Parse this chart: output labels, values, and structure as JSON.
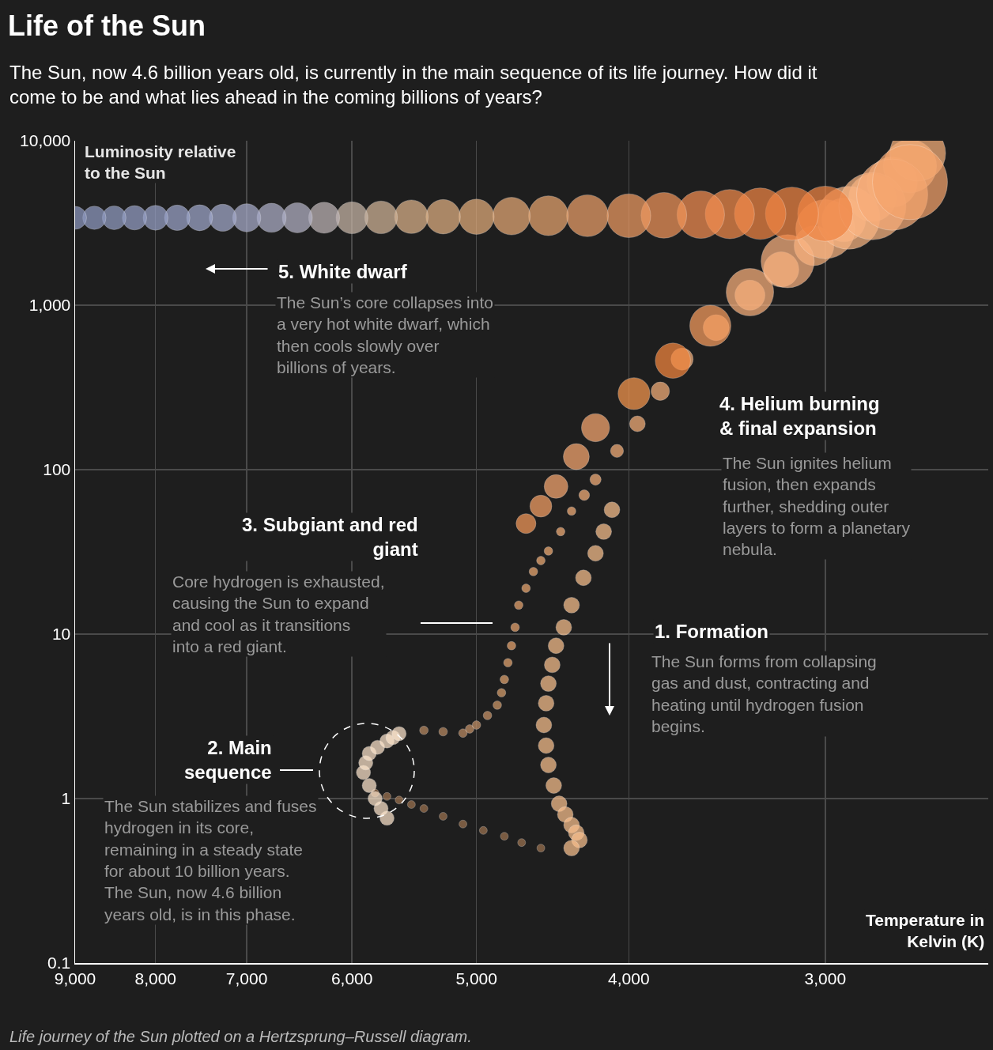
{
  "chart_data": {
    "type": "bubble",
    "title": "Life of the Sun",
    "subtitle": "The Sun, now 4.6 billion years old, is currently in the main sequence of its life journey. How did it come to be and what lies ahead in the coming billions of years?",
    "xlabel": "Temperature in Kelvin (K)",
    "ylabel": "Luminosity relative to the Sun",
    "annotations": [
      "5. White dwarf",
      "The Sun’s core collapses into a very hot white dwarf, which then cools slowly over billions of years.",
      "4. Helium burning & final expansion",
      "The Sun ignites helium fusion, then expands further, shedding outer layers to form a planetary nebula.",
      "3. Subgiant and red giant",
      "Core hydrogen is exhausted, causing the Sun to expand and cool as it transitions into a red giant.",
      "1. Formation",
      "The Sun forms from collapsing gas and dust, contracting and heating until hydrogen fusion begins.",
      "2. Main sequence",
      "The Sun stabilizes and fuses hydrogen in its core, remaining in a steady state for about 10 billion years. The Sun, now 4.6 billion years old, is in this phase.",
      "Life journey of the Sun plotted on a Hertzsprung–Russell diagram."
    ],
    "x": [
      4100,
      4150,
      4200,
      4275,
      4350,
      4400,
      4450,
      4475,
      4500,
      4515,
      4530,
      4515,
      4500,
      4465,
      4430,
      4390,
      4350,
      4320,
      4300,
      4350,
      4550,
      4680,
      4800,
      4950,
      5100,
      5250,
      5400,
      5500,
      5600,
      5700,
      5800,
      5700,
      5750,
      5800,
      5850,
      5900,
      5880,
      5850,
      5780,
      5700,
      5650,
      5600,
      5400,
      5250,
      5100,
      5050,
      5000,
      4920,
      4850,
      4820,
      4800,
      4775,
      4750,
      4725,
      4700,
      4650,
      4600,
      4550,
      4500,
      4420,
      4350,
      4270,
      4200,
      4070,
      3950,
      3820,
      3700,
      3520,
      3350,
      3200,
      3050,
      2920,
      2800,
      2720,
      2650,
      2620,
      4650,
      4550,
      4450,
      4320,
      4200,
      3970,
      3750,
      3550,
      3350,
      3170,
      3000,
      2900,
      2800,
      2720,
      2650,
      3000,
      3150,
      3300,
      3450,
      3600,
      3800,
      4000,
      4250,
      4500,
      4750,
      5000,
      5250,
      5500,
      5750,
      6000,
      6250,
      6500,
      6750,
      7000,
      7250,
      7500,
      7750,
      8000,
      8250,
      8500,
      8750,
      9000
    ],
    "values": [
      57,
      42,
      31,
      22,
      15,
      11,
      8.5,
      6.5,
      5,
      3.8,
      2.8,
      2.1,
      1.6,
      1.2,
      0.93,
      0.8,
      0.69,
      0.62,
      0.56,
      0.5,
      0.5,
      0.54,
      0.59,
      0.64,
      0.7,
      0.78,
      0.87,
      0.92,
      0.98,
      1.03,
      1.08,
      0.76,
      0.87,
      1.0,
      1.2,
      1.44,
      1.65,
      1.88,
      2.05,
      2.24,
      2.35,
      2.48,
      2.6,
      2.55,
      2.5,
      2.65,
      2.8,
      3.2,
      3.7,
      4.4,
      5.3,
      6.7,
      8.5,
      11,
      15,
      19,
      24,
      28,
      32,
      42,
      56,
      70,
      87,
      130,
      190,
      300,
      470,
      730,
      1150,
      1650,
      2300,
      3300,
      4500,
      5600,
      7000,
      8400,
      47,
      60,
      79,
      120,
      180,
      290,
      460,
      750,
      1200,
      1850,
      2900,
      3400,
      4000,
      4700,
      5600,
      3600,
      3600,
      3600,
      3580,
      3550,
      3520,
      3500,
      3500,
      3500,
      3480,
      3450,
      3450,
      3450,
      3420,
      3400,
      3400,
      3400,
      3400,
      3400,
      3400,
      3400,
      3400,
      3400,
      3400,
      3400,
      3400,
      3400
    ],
    "sizes": [
      0.044,
      0.044,
      0.044,
      0.044,
      0.044,
      0.044,
      0.044,
      0.044,
      0.044,
      0.044,
      0.044,
      0.044,
      0.044,
      0.044,
      0.044,
      0.044,
      0.044,
      0.044,
      0.044,
      0.044,
      0.011,
      0.011,
      0.011,
      0.011,
      0.011,
      0.011,
      0.011,
      0.011,
      0.011,
      0.011,
      0.011,
      0.036,
      0.036,
      0.036,
      0.036,
      0.036,
      0.036,
      0.036,
      0.036,
      0.036,
      0.036,
      0.036,
      0.013,
      0.013,
      0.013,
      0.013,
      0.013,
      0.013,
      0.013,
      0.013,
      0.013,
      0.013,
      0.013,
      0.013,
      0.013,
      0.013,
      0.013,
      0.013,
      0.013,
      0.013,
      0.013,
      0.02,
      0.022,
      0.03,
      0.044,
      0.06,
      0.087,
      0.12,
      0.16,
      0.22,
      0.28,
      0.34,
      0.4,
      0.45,
      0.5,
      0.55,
      0.07,
      0.085,
      0.1,
      0.12,
      0.14,
      0.18,
      0.22,
      0.3,
      0.4,
      0.5,
      0.62,
      0.7,
      0.8,
      0.9,
      1.0,
      0.54,
      0.5,
      0.47,
      0.43,
      0.4,
      0.37,
      0.34,
      0.31,
      0.28,
      0.25,
      0.22,
      0.21,
      0.2,
      0.19,
      0.18,
      0.17,
      0.16,
      0.15,
      0.14,
      0.13,
      0.12,
      0.115,
      0.11,
      0.105,
      0.1,
      0.096,
      0.093
    ],
    "colors": [
      "#f9c08e",
      "#f9c08e",
      "#f9c08e",
      "#f9c08e",
      "#f9c08e",
      "#f9c08e",
      "#f9c08e",
      "#f9c08e",
      "#f9c08e",
      "#f9c08e",
      "#f9c08e",
      "#f9c08e",
      "#f9c08e",
      "#f9c08e",
      "#f9c08e",
      "#f9c08e",
      "#f9c08e",
      "#f9c08e",
      "#f9c08e",
      "#f9c08e",
      "#9c7350",
      "#9c7350",
      "#9c7350",
      "#9c7350",
      "#9c7350",
      "#9c7350",
      "#9c7350",
      "#9c7350",
      "#9c7350",
      "#9c7350",
      "#9c7350",
      "#fde5cc",
      "#fde5cc",
      "#fde5cc",
      "#fde5cc",
      "#fde5cc",
      "#fde5cc",
      "#fde5cc",
      "#fde5cc",
      "#fde5cc",
      "#fde5cc",
      "#fde5cc",
      "#b98a62",
      "#b98a62",
      "#bd8c64",
      "#c49168",
      "#c49168",
      "#ca9569",
      "#d09a6a",
      "#d89f6c",
      "#e0a46f",
      "#e4a56f",
      "#e9a56f",
      "#e9a56f",
      "#e9a56f",
      "#eba870",
      "#eeaa72",
      "#f0ac74",
      "#f2ad75",
      "#f4ae77",
      "#f5af78",
      "#f7b07a",
      "#f7b07a",
      "#f7b07a",
      "#f7b07a",
      "#f7b07a",
      "#f7b07a",
      "#f7b07a",
      "#f7b07a",
      "#f7b07a",
      "#f7b07a",
      "#f7b07a",
      "#f7b07a",
      "#f7b07a",
      "#f7b07a",
      "#f7b07a",
      "#f59a5a",
      "#f7a165",
      "#f8a870",
      "#f8a870",
      "#f8a870",
      "#f6974e",
      "#f4873f",
      "#f79c5e",
      "#f9b07c",
      "#fab280",
      "#fab583",
      "#fab583",
      "#fab583",
      "#f8ac78",
      "#f5a46c",
      "#f08544",
      "#f08544",
      "#f08544",
      "#f18a4b",
      "#f28e52",
      "#f0955a",
      "#ee9b63",
      "#eba069",
      "#e8a56f",
      "#e6a976",
      "#e3ad7c",
      "#e0b083",
      "#dcb38a",
      "#d3b599",
      "#c9b7a8",
      "#bfb5b7",
      "#b4b3c6",
      "#aeb0c9",
      "#a9adcc",
      "#a4aacc",
      "#a0a8cc",
      "#9ca5ca",
      "#98a2c8",
      "#96a0c6",
      "#939ec4",
      "#909bc2",
      "#8e99c0"
    ],
    "xlim": [
      9000,
      2363
    ],
    "ylim": [
      0.1,
      10000
    ],
    "xticks": [
      {
        "value": 9000,
        "label": "9,000"
      },
      {
        "value": 8000,
        "label": "8,000"
      },
      {
        "value": 7000,
        "label": "7,000"
      },
      {
        "value": 6000,
        "label": "6,000"
      },
      {
        "value": 5000,
        "label": "5,000"
      },
      {
        "value": 4000,
        "label": "4,000"
      },
      {
        "value": 3000,
        "label": "3,000"
      }
    ],
    "yticks": [
      {
        "value": 0.1,
        "label": "0.1"
      },
      1,
      10,
      100,
      {
        "value": 1000,
        "label": "1,000"
      },
      {
        "value": 10000,
        "label": "10,000"
      }
    ],
    "log": "xy",
    "grid": true
  }
}
